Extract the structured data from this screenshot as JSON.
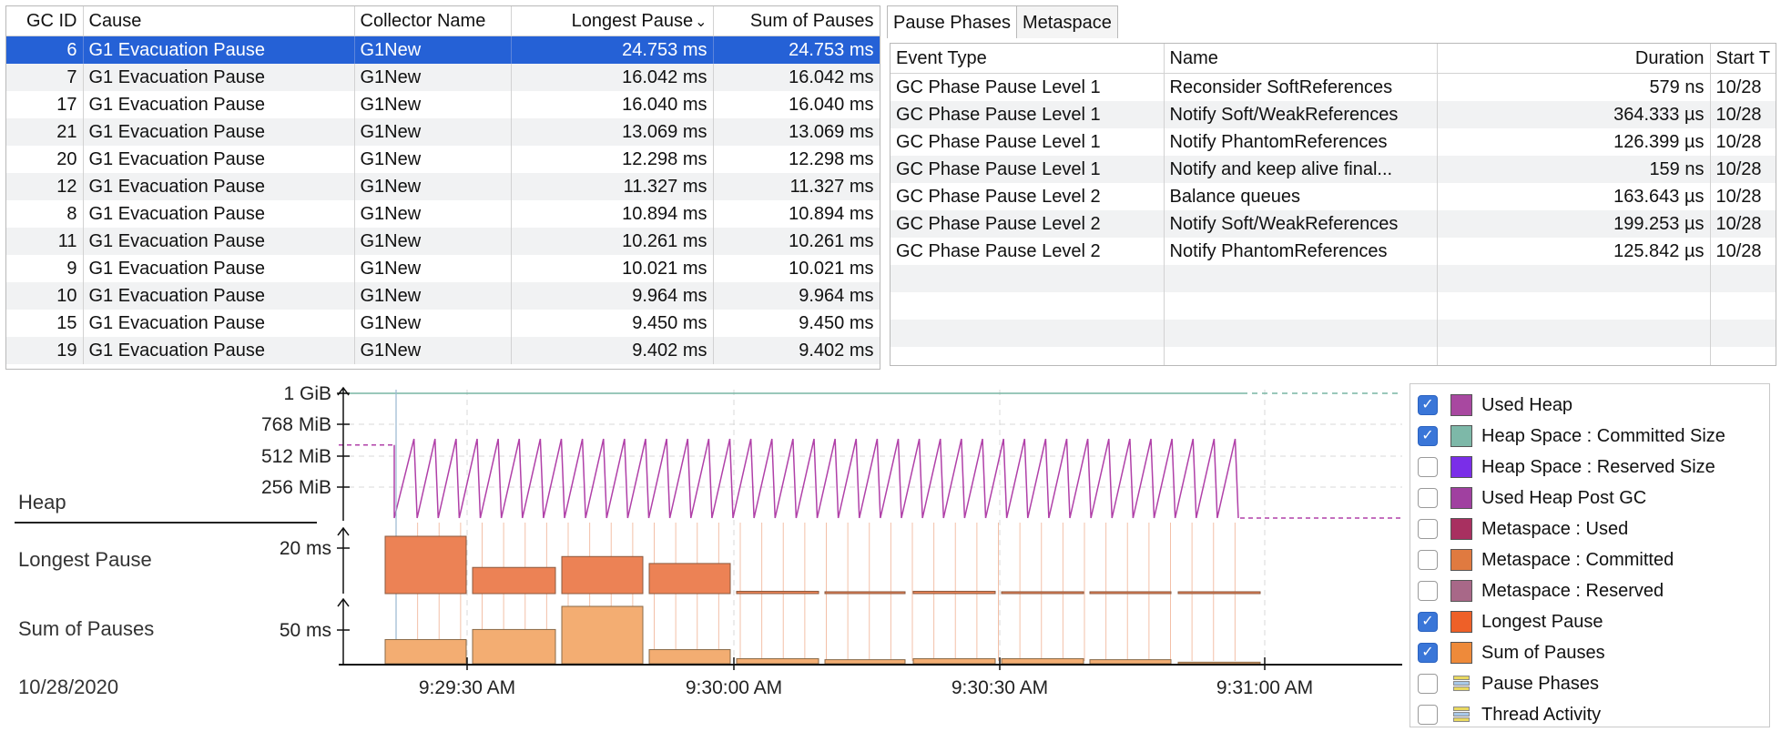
{
  "gc_table": {
    "columns": [
      "GC ID",
      "Cause",
      "Collector Name",
      "Longest Pause",
      "Sum of Pauses"
    ],
    "sort_indicator": "⌄",
    "rows": [
      [
        "6",
        "G1 Evacuation Pause",
        "G1New",
        "24.753 ms",
        "24.753 ms"
      ],
      [
        "7",
        "G1 Evacuation Pause",
        "G1New",
        "16.042 ms",
        "16.042 ms"
      ],
      [
        "17",
        "G1 Evacuation Pause",
        "G1New",
        "16.040 ms",
        "16.040 ms"
      ],
      [
        "21",
        "G1 Evacuation Pause",
        "G1New",
        "13.069 ms",
        "13.069 ms"
      ],
      [
        "20",
        "G1 Evacuation Pause",
        "G1New",
        "12.298 ms",
        "12.298 ms"
      ],
      [
        "12",
        "G1 Evacuation Pause",
        "G1New",
        "11.327 ms",
        "11.327 ms"
      ],
      [
        "8",
        "G1 Evacuation Pause",
        "G1New",
        "10.894 ms",
        "10.894 ms"
      ],
      [
        "11",
        "G1 Evacuation Pause",
        "G1New",
        "10.261 ms",
        "10.261 ms"
      ],
      [
        "9",
        "G1 Evacuation Pause",
        "G1New",
        "10.021 ms",
        "10.021 ms"
      ],
      [
        "10",
        "G1 Evacuation Pause",
        "G1New",
        "9.964 ms",
        "9.964 ms"
      ],
      [
        "15",
        "G1 Evacuation Pause",
        "G1New",
        "9.450 ms",
        "9.450 ms"
      ],
      [
        "19",
        "G1 Evacuation Pause",
        "G1New",
        "9.402 ms",
        "9.402 ms"
      ]
    ]
  },
  "tabs": [
    {
      "label": "Pause Phases",
      "active": true
    },
    {
      "label": "Metaspace",
      "active": false
    }
  ],
  "phase_table": {
    "columns": [
      "Event Type",
      "Name",
      "Duration",
      "Start T"
    ],
    "rows": [
      [
        "GC Phase Pause Level 1",
        "Reconsider SoftReferences",
        "579 ns",
        "10/28"
      ],
      [
        "GC Phase Pause Level 1",
        "Notify Soft/WeakReferences",
        "364.333 µs",
        "10/28"
      ],
      [
        "GC Phase Pause Level 1",
        "Notify PhantomReferences",
        "126.399 µs",
        "10/28"
      ],
      [
        "GC Phase Pause Level 1",
        "Notify and keep alive final...",
        "159 ns",
        "10/28"
      ],
      [
        "GC Phase Pause Level 2",
        "Balance queues",
        "163.643 µs",
        "10/28"
      ],
      [
        "GC Phase Pause Level 2",
        "Notify Soft/WeakReferences",
        "199.253 µs",
        "10/28"
      ],
      [
        "GC Phase Pause Level 2",
        "Notify PhantomReferences",
        "125.842 µs",
        "10/28"
      ],
      [
        "",
        "",
        "",
        ""
      ],
      [
        "",
        "",
        "",
        ""
      ],
      [
        "",
        "",
        "",
        ""
      ],
      [
        "",
        "",
        "",
        ""
      ]
    ]
  },
  "chart_data": {
    "type": "line",
    "date_label": "10/28/2020",
    "x_ticks": [
      "9:29:30 AM",
      "9:30:00 AM",
      "9:30:30 AM",
      "9:31:00 AM"
    ],
    "sections": [
      {
        "name": "Heap",
        "y_ticks": [
          "1 GiB",
          "768 MiB",
          "512 MiB",
          "256 MiB"
        ]
      },
      {
        "name": "Longest Pause",
        "y_ticks": [
          "20 ms"
        ]
      },
      {
        "name": "Sum of Pauses",
        "y_ticks": [
          "50 ms"
        ]
      }
    ],
    "heap_committed_mib": 1024,
    "heap_used_sawtooth_mib": {
      "low": 0,
      "high": 650,
      "cycles": 40
    },
    "heap_used_before_after_mib": 600,
    "longest_pause_ms": [
      24.753,
      11.3,
      16.0,
      13.0,
      1.0,
      0.8,
      1.0,
      0.8,
      0.8,
      0.8
    ],
    "sum_of_pauses_ms": [
      24.0,
      34.0,
      57.0,
      14.0,
      5.0,
      4.0,
      5.0,
      5.0,
      4.0,
      1.5
    ],
    "colors": {
      "used_heap": "#b040a8",
      "committed": "#78b5a4",
      "longest_pause": "#e8703a",
      "sum_pauses": "#f0a060"
    }
  },
  "legend": [
    {
      "label": "Used Heap",
      "checked": true,
      "color": "#a848a0",
      "icon": "swatch"
    },
    {
      "label": "Heap Space : Committed Size",
      "checked": true,
      "color": "#7db8a8",
      "icon": "swatch"
    },
    {
      "label": "Heap Space : Reserved Size",
      "checked": false,
      "color": "#7a2ee8",
      "icon": "swatch"
    },
    {
      "label": "Used Heap Post GC",
      "checked": false,
      "color": "#a040a0",
      "icon": "swatch"
    },
    {
      "label": "Metaspace : Used",
      "checked": false,
      "color": "#a83060",
      "icon": "swatch"
    },
    {
      "label": "Metaspace : Committed",
      "checked": false,
      "color": "#e07a40",
      "icon": "swatch"
    },
    {
      "label": "Metaspace : Reserved",
      "checked": false,
      "color": "#a86888",
      "icon": "swatch"
    },
    {
      "label": "Longest Pause",
      "checked": true,
      "color": "#ee6028",
      "icon": "swatch"
    },
    {
      "label": "Sum of Pauses",
      "checked": true,
      "color": "#ee8a3a",
      "icon": "swatch"
    },
    {
      "label": "Pause Phases",
      "checked": false,
      "color": "#c8d070",
      "icon": "thread-lanes-icon"
    },
    {
      "label": "Thread Activity",
      "checked": false,
      "color": "#c8d070",
      "icon": "thread-lanes-icon"
    }
  ]
}
